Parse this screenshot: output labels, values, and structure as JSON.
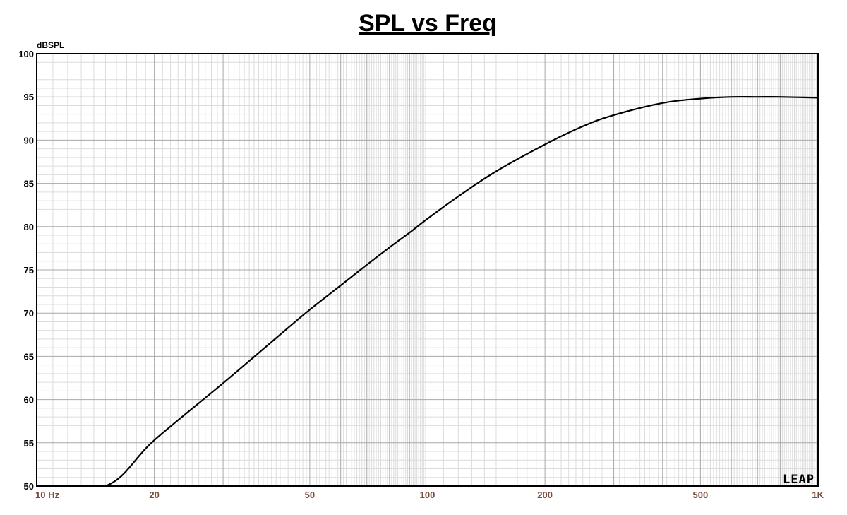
{
  "chart_data": {
    "type": "line",
    "title": "SPL vs Freq",
    "ylabel": "dBSPL",
    "xscale": "log",
    "xlim": [
      10,
      1000
    ],
    "ylim": [
      50,
      100
    ],
    "grid": true,
    "yticks": [
      {
        "value": 100,
        "label": "100"
      },
      {
        "value": 95,
        "label": "95"
      },
      {
        "value": 90,
        "label": "90"
      },
      {
        "value": 85,
        "label": "85"
      },
      {
        "value": 80,
        "label": "80"
      },
      {
        "value": 75,
        "label": "75"
      },
      {
        "value": 70,
        "label": "70"
      },
      {
        "value": 65,
        "label": "65"
      },
      {
        "value": 60,
        "label": "60"
      },
      {
        "value": 55,
        "label": "55"
      },
      {
        "value": 50,
        "label": "50"
      }
    ],
    "xticks": [
      {
        "value": 10,
        "label": "10  Hz"
      },
      {
        "value": 20,
        "label": "20"
      },
      {
        "value": 50,
        "label": "50"
      },
      {
        "value": 100,
        "label": "100"
      },
      {
        "value": 200,
        "label": "200"
      },
      {
        "value": 500,
        "label": "500"
      },
      {
        "value": 1000,
        "label": "1K"
      }
    ],
    "series": [
      {
        "color": "#000000",
        "x": [
          10,
          15,
          20,
          30,
          40,
          50,
          60,
          70,
          80,
          90,
          100,
          120,
          150,
          200,
          250,
          300,
          400,
          500,
          600,
          700,
          800,
          1000
        ],
        "y": [
          50,
          50,
          55.3,
          61.9,
          66.7,
          70.4,
          73.2,
          75.6,
          77.6,
          79.3,
          80.9,
          83.5,
          86.4,
          89.5,
          91.6,
          92.9,
          94.3,
          94.8,
          95.0,
          95.0,
          95.0,
          94.9
        ]
      }
    ],
    "logo_text": "LEAP"
  }
}
